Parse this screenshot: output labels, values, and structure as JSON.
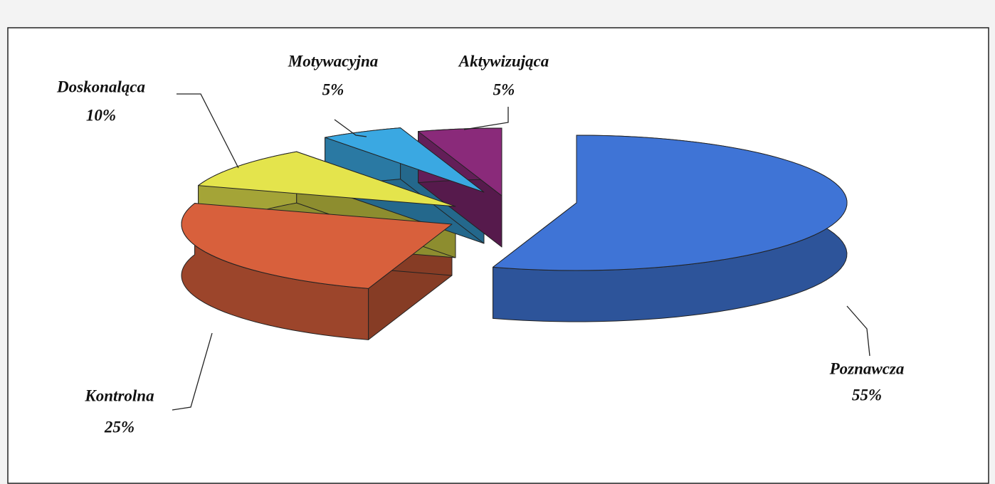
{
  "chart_data": {
    "type": "pie",
    "categories": [
      "Poznawcza",
      "Kontrolna",
      "Doskonaląca",
      "Motywacyjna",
      "Aktywizująca"
    ],
    "values": [
      55,
      25,
      10,
      5,
      5
    ],
    "value_labels": [
      "55%",
      "25%",
      "10%",
      "5%",
      "5%"
    ],
    "colors": [
      "#3f74d6",
      "#d8603c",
      "#e4e44c",
      "#3aa8e2",
      "#8a2a7a"
    ]
  }
}
